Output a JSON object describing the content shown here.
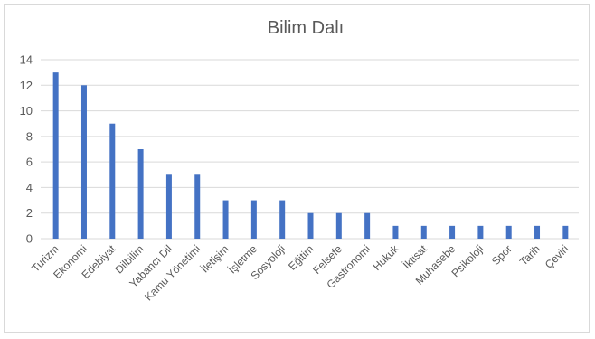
{
  "chart_data": {
    "type": "bar",
    "title": "Bilim Dalı",
    "xlabel": "",
    "ylabel": "",
    "ylim": [
      0,
      14
    ],
    "yticks": [
      0,
      2,
      4,
      6,
      8,
      10,
      12,
      14
    ],
    "grid": true,
    "bar_color": "#4472c4",
    "categories": [
      "Turizm",
      "Ekonomi",
      "Edebiyat",
      "Dilbilim",
      "Yabancı Dil",
      "Kamu Yönetimi",
      "İletişim",
      "İşletme",
      "Sosyoloji",
      "Eğitim",
      "Felsefe",
      "Gastronomi",
      "Hukuk",
      "İktisat",
      "Muhasebe",
      "Psikoloji",
      "Spor",
      "Tarih",
      "Çeviri"
    ],
    "values": [
      13,
      12,
      9,
      7,
      5,
      5,
      3,
      3,
      3,
      2,
      2,
      2,
      1,
      1,
      1,
      1,
      1,
      1,
      1
    ]
  }
}
